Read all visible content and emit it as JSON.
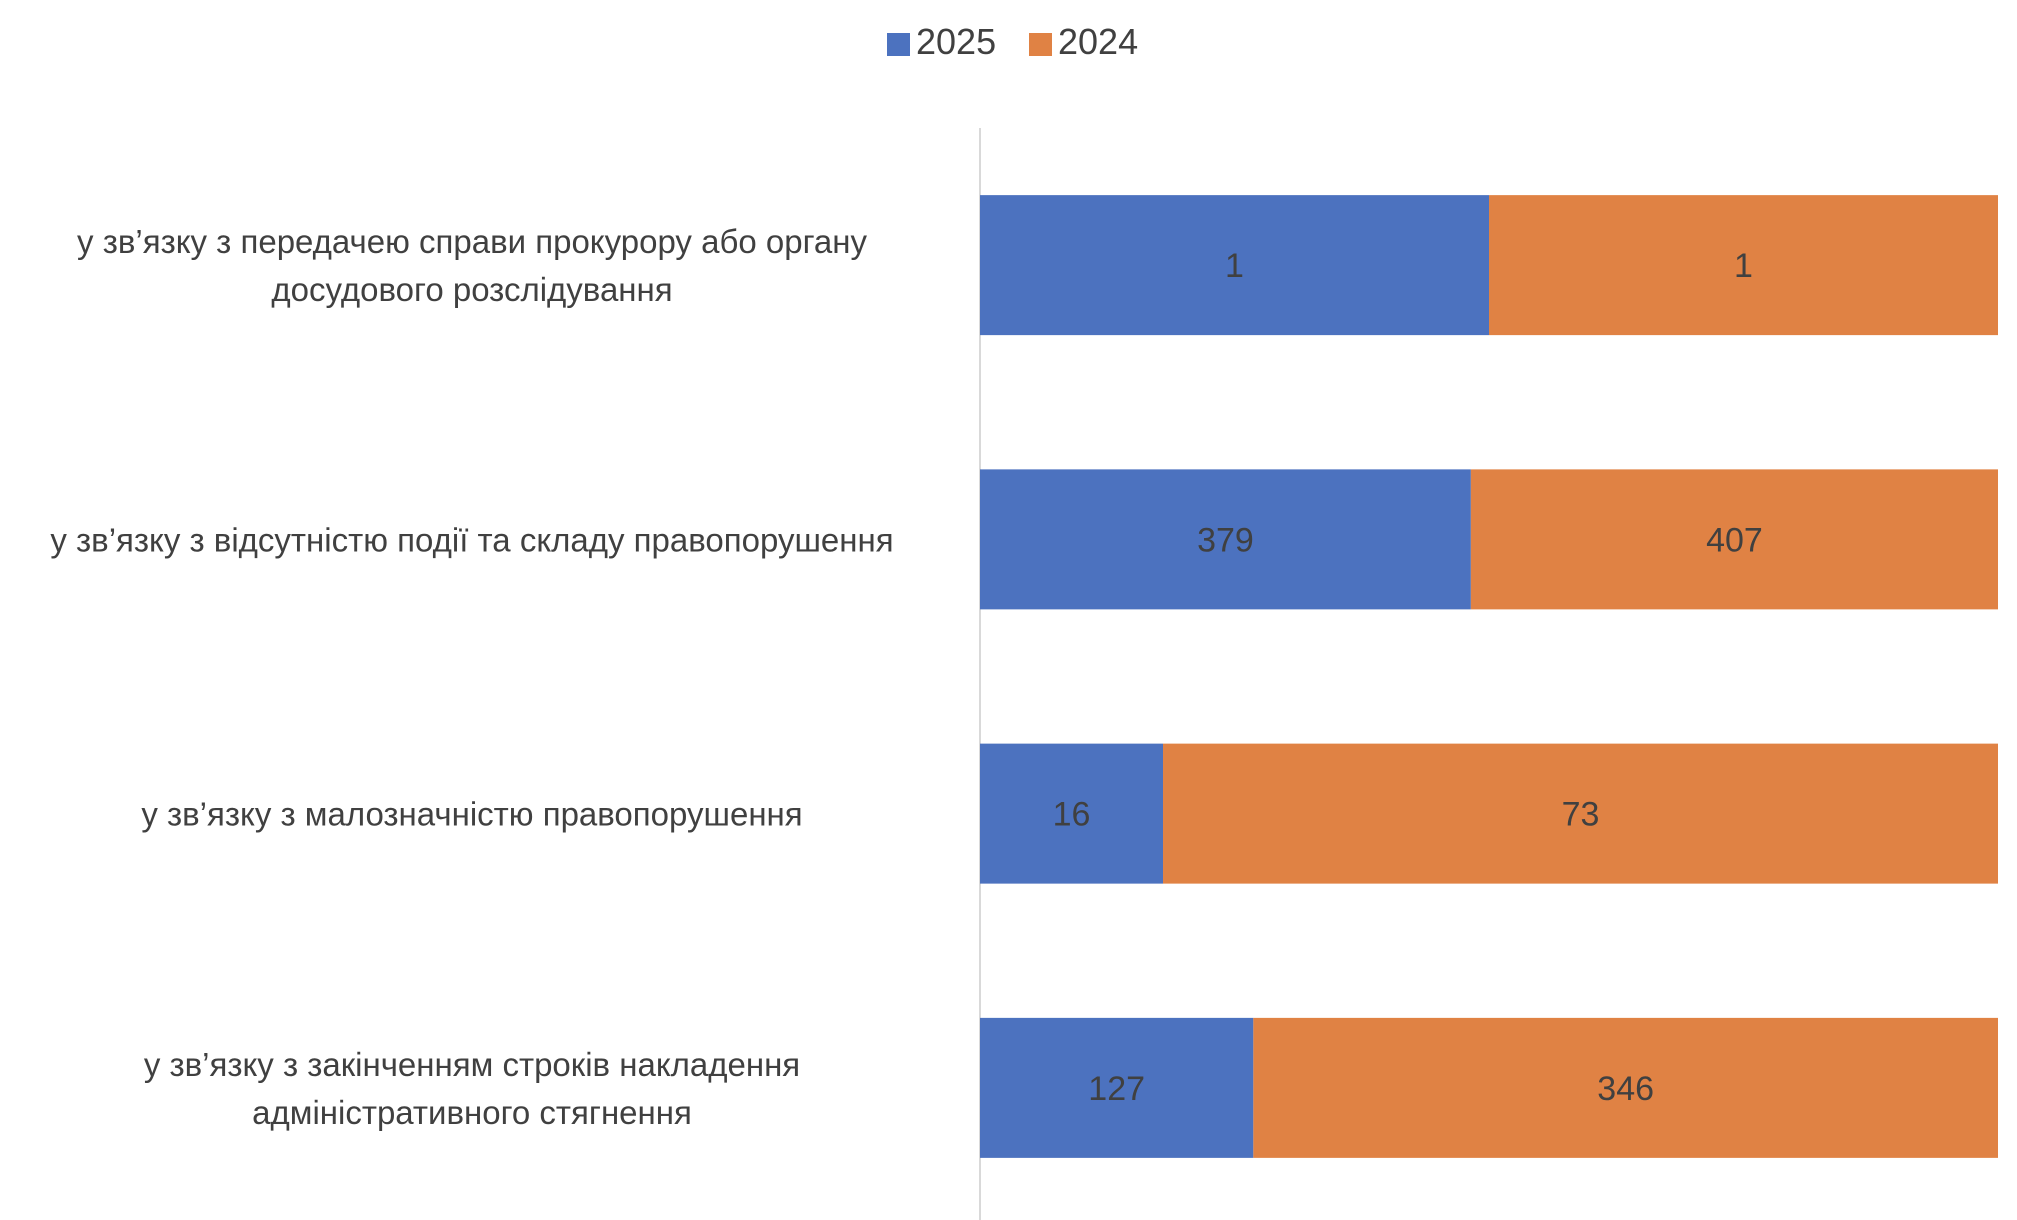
{
  "chart_data": {
    "type": "bar",
    "orientation": "horizontal",
    "stacking": "percent",
    "title": "",
    "legend": {
      "position": "top",
      "entries": [
        {
          "name": "2025",
          "color": "#4C72BF"
        },
        {
          "name": "2024",
          "color": "#E08244"
        }
      ]
    },
    "categories": [
      [
        "у зв’язку з передачею справи прокурору або органу",
        "досудового розслідування"
      ],
      [
        "у зв’язку з відсутністю події та складу правопорушення"
      ],
      [
        "у зв’язку з малозначністю правопорушення"
      ],
      [
        "у зв’язку з закінченням строків накладення",
        "адміністративного стягнення"
      ]
    ],
    "series": [
      {
        "name": "2025",
        "color": "#4C72BF",
        "values": [
          1,
          379,
          16,
          127
        ]
      },
      {
        "name": "2024",
        "color": "#E08244",
        "values": [
          1,
          407,
          73,
          346
        ]
      }
    ],
    "xlabel": "",
    "ylabel": "",
    "grid": false,
    "label_color": "#404040",
    "axis_color": "#D9D9D9"
  }
}
